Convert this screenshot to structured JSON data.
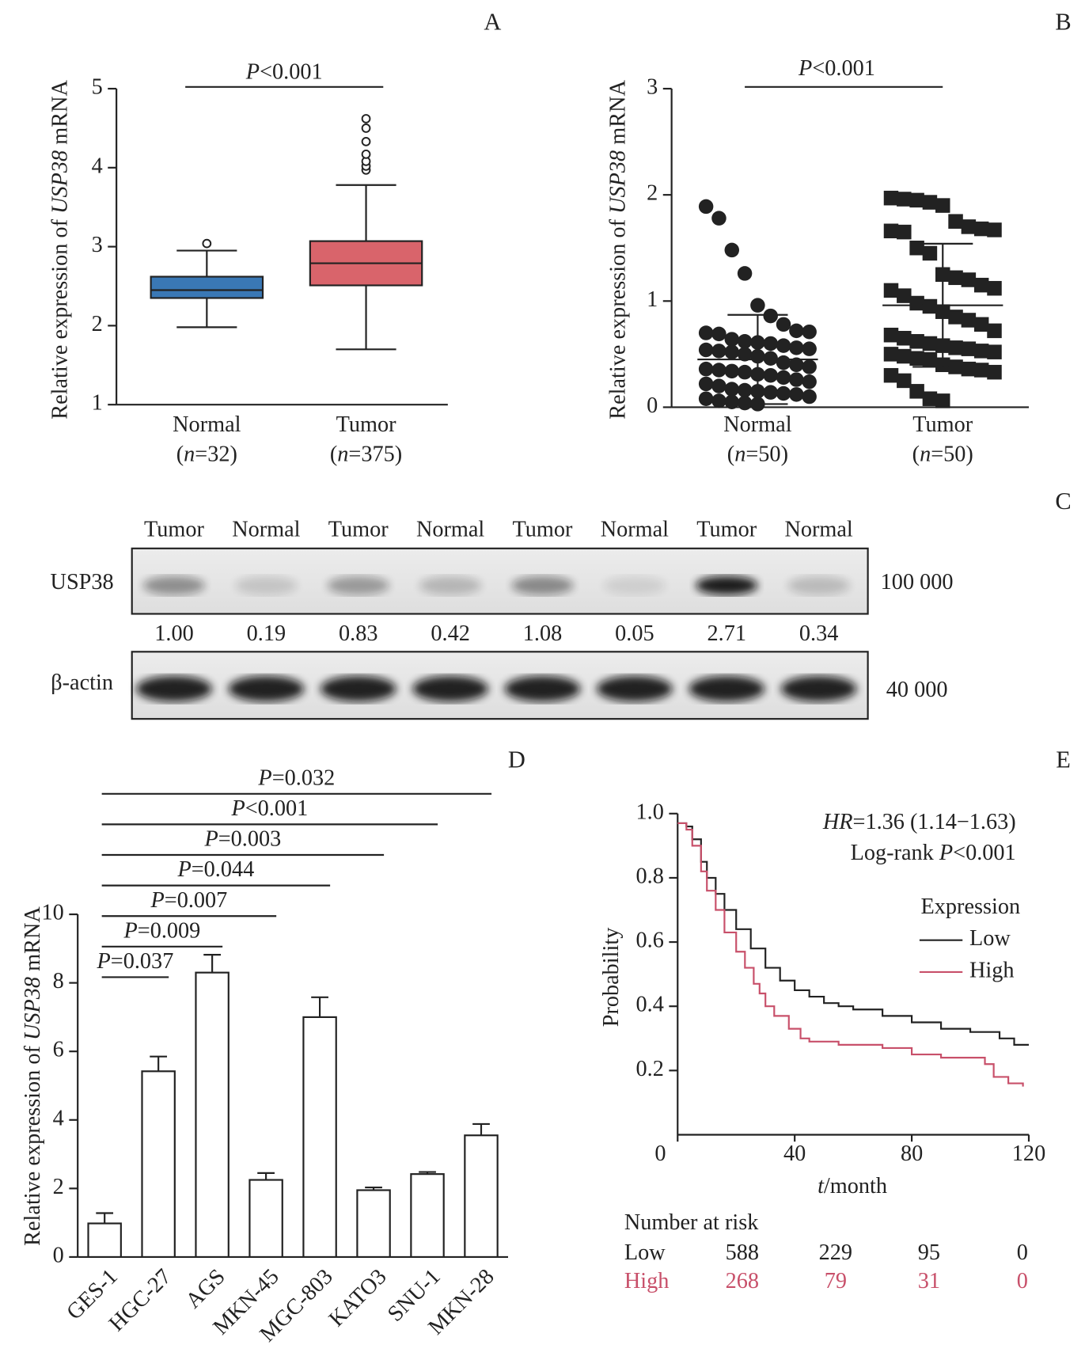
{
  "chart_data": [
    {
      "type": "box",
      "panel_label": "A",
      "y_label": "Relative expression of USP38 mRNA",
      "categories": [
        "Normal",
        "Tumor"
      ],
      "category_sublabels": [
        "(n=32)",
        "(n=375)"
      ],
      "boxes": [
        {
          "color": "#3a78b5",
          "whisker_low": 1.98,
          "q1": 2.35,
          "median": 2.45,
          "q3": 2.62,
          "whisker_high": 2.95,
          "outliers": [
            3.04
          ]
        },
        {
          "color": "#d9646b",
          "whisker_low": 1.7,
          "q1": 2.51,
          "median": 2.79,
          "q3": 3.07,
          "whisker_high": 3.78,
          "outliers": [
            3.97,
            4.02,
            4.08,
            4.17,
            4.33,
            4.5,
            4.62
          ]
        }
      ],
      "annotation": "P<0.001",
      "ylim": [
        1,
        5
      ],
      "yticks": [
        1,
        2,
        3,
        4,
        5
      ]
    },
    {
      "type": "dot",
      "panel_label": "B",
      "y_label": "Relative expression of USP38 mRNA",
      "categories": [
        "Normal",
        "Tumor"
      ],
      "category_sublabels": [
        "(n=50)",
        "(n=50)"
      ],
      "groups": [
        {
          "marker": "circle",
          "color": "#222222",
          "mean": 0.45,
          "sd": 0.42,
          "values": [
            1.89,
            1.78,
            1.48,
            1.26,
            0.96,
            0.86,
            0.78,
            0.72,
            0.71,
            0.7,
            0.69,
            0.64,
            0.62,
            0.61,
            0.6,
            0.58,
            0.56,
            0.55,
            0.54,
            0.53,
            0.52,
            0.5,
            0.48,
            0.46,
            0.42,
            0.4,
            0.38,
            0.36,
            0.35,
            0.34,
            0.33,
            0.31,
            0.3,
            0.28,
            0.26,
            0.24,
            0.22,
            0.2,
            0.17,
            0.16,
            0.15,
            0.14,
            0.13,
            0.12,
            0.1,
            0.08,
            0.06,
            0.05,
            0.04,
            0.03
          ]
        },
        {
          "marker": "square",
          "color": "#222222",
          "mean": 0.96,
          "sd": 0.58,
          "values": [
            1.97,
            1.96,
            1.95,
            1.93,
            1.9,
            1.75,
            1.7,
            1.68,
            1.67,
            1.66,
            1.65,
            1.5,
            1.45,
            1.25,
            1.22,
            1.2,
            1.15,
            1.12,
            1.1,
            1.05,
            0.98,
            0.95,
            0.9,
            0.85,
            0.82,
            0.78,
            0.72,
            0.68,
            0.65,
            0.62,
            0.6,
            0.58,
            0.56,
            0.55,
            0.53,
            0.52,
            0.5,
            0.48,
            0.46,
            0.45,
            0.4,
            0.38,
            0.36,
            0.35,
            0.33,
            0.3,
            0.25,
            0.15,
            0.08,
            0.06
          ]
        }
      ],
      "annotation": "P<0.001",
      "ylim": [
        0,
        3
      ],
      "yticks": [
        0,
        1,
        2,
        3
      ]
    },
    {
      "type": "bar",
      "panel_label": "D",
      "y_label": "Relative expression of USP38 mRNA",
      "categories": [
        "GES-1",
        "HGC-27",
        "AGS",
        "MKN-45",
        "MGC-803",
        "KATO3",
        "SNU-1",
        "MKN-28"
      ],
      "values": [
        0.98,
        5.42,
        8.3,
        2.25,
        7.0,
        1.95,
        2.42,
        3.55
      ],
      "errors": [
        0.3,
        0.43,
        0.52,
        0.2,
        0.58,
        0.08,
        0.06,
        0.33
      ],
      "comparison_labels": [
        "P=0.037",
        "P=0.009",
        "P=0.007",
        "P=0.044",
        "P=0.003",
        "P<0.001",
        "P=0.032"
      ],
      "color": "#ffffff",
      "ylim": [
        0,
        10
      ],
      "yticks": [
        0,
        2,
        4,
        6,
        8,
        10
      ]
    },
    {
      "type": "survival",
      "panel_label": "E",
      "x_label": "t/month",
      "y_label": "Probability",
      "annotations": [
        "HR=1.36 (1.14−1.63)",
        "Log-rank P<0.001"
      ],
      "legend_title": "Expression",
      "series": [
        {
          "name": "Low",
          "color": "#222222",
          "x": [
            0,
            3,
            5,
            8,
            10,
            13,
            16,
            20,
            25,
            30,
            35,
            40,
            45,
            50,
            55,
            60,
            70,
            80,
            90,
            100,
            110,
            115,
            120
          ],
          "values": [
            0.97,
            0.96,
            0.92,
            0.85,
            0.8,
            0.75,
            0.7,
            0.64,
            0.58,
            0.52,
            0.48,
            0.45,
            0.43,
            0.41,
            0.4,
            0.39,
            0.37,
            0.35,
            0.33,
            0.32,
            0.3,
            0.28,
            0.28
          ]
        },
        {
          "name": "High",
          "color": "#c8506a",
          "x": [
            0,
            3,
            5,
            8,
            10,
            13,
            16,
            20,
            23,
            26,
            28,
            30,
            33,
            38,
            42,
            45,
            55,
            65,
            70,
            80,
            90,
            100,
            105,
            108,
            113,
            118
          ],
          "values": [
            0.97,
            0.95,
            0.9,
            0.82,
            0.76,
            0.7,
            0.63,
            0.57,
            0.52,
            0.47,
            0.44,
            0.4,
            0.37,
            0.33,
            0.3,
            0.29,
            0.28,
            0.28,
            0.27,
            0.25,
            0.24,
            0.24,
            0.22,
            0.18,
            0.16,
            0.15
          ]
        }
      ],
      "xlim": [
        0,
        120
      ],
      "xticks": [
        0,
        40,
        80,
        120
      ],
      "ylim": [
        0,
        1
      ],
      "yticks": [
        {
          "value": 0.2,
          "label": "0.2"
        },
        {
          "value": 0.4,
          "label": "0.4"
        },
        {
          "value": 0.6,
          "label": "0.6"
        },
        {
          "value": 0.8,
          "label": "0.8"
        },
        {
          "value": 1,
          "label": "1.0"
        }
      ],
      "risk_table": {
        "title": "Number at risk",
        "rows": [
          {
            "name": "Low",
            "values": [
              588,
              229,
              95,
              0
            ]
          },
          {
            "name": "High",
            "values": [
              268,
              79,
              31,
              0
            ]
          }
        ]
      }
    }
  ],
  "blot": {
    "panel_label": "C",
    "lanes": [
      "Tumor",
      "Normal",
      "Tumor",
      "Normal",
      "Tumor",
      "Normal",
      "Tumor",
      "Normal"
    ],
    "rows": [
      {
        "name": "USP38",
        "size": "100 000"
      },
      {
        "name": "β-actin",
        "size": "40 000"
      }
    ],
    "quantification": [
      "1.00",
      "0.19",
      "0.83",
      "0.42",
      "1.08",
      "0.05",
      "2.71",
      "0.34"
    ]
  }
}
